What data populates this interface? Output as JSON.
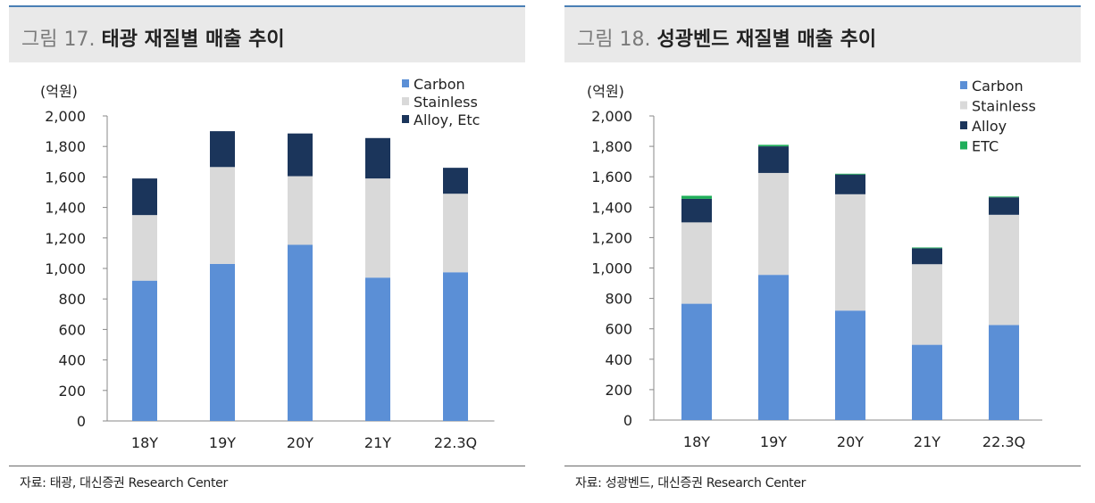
{
  "figures": [
    {
      "number": "그림 17.",
      "title": "태광 재질별 매출 추이",
      "source": "자료: 태광, 대신증권 Research Center",
      "unit": "(억원)"
    },
    {
      "number": "그림 18.",
      "title": "성광벤드 재질별 매출 추이",
      "source": "자료: 성광벤드, 대신증권 Research Center",
      "unit": "(억원)"
    }
  ],
  "chart_data": [
    {
      "type": "bar",
      "stacked": true,
      "title": "태광 재질별 매출 추이",
      "ylabel": "(억원)",
      "ylim": [
        0,
        2000
      ],
      "yticks": [
        "0",
        "200",
        "400",
        "600",
        "800",
        "1,000",
        "1,200",
        "1,400",
        "1,600",
        "1,800",
        "2,000"
      ],
      "categories": [
        "18Y",
        "19Y",
        "20Y",
        "21Y",
        "22.3Q"
      ],
      "legend_position": "top-right",
      "series": [
        {
          "name": "Carbon",
          "color": "#5b8fd6",
          "values": [
            920,
            1030,
            1155,
            940,
            975
          ]
        },
        {
          "name": "Stainless",
          "color": "#d9d9d9",
          "values": [
            430,
            635,
            450,
            650,
            515
          ]
        },
        {
          "name": "Alloy, Etc",
          "color": "#1b355b",
          "values": [
            240,
            235,
            280,
            265,
            170
          ]
        }
      ],
      "grid": false
    },
    {
      "type": "bar",
      "stacked": true,
      "title": "성광벤드 재질별 매출 추이",
      "ylabel": "(억원)",
      "ylim": [
        0,
        2000
      ],
      "yticks": [
        "0",
        "200",
        "400",
        "600",
        "800",
        "1,000",
        "1,200",
        "1,400",
        "1,600",
        "1,800",
        "2,000"
      ],
      "categories": [
        "18Y",
        "19Y",
        "20Y",
        "21Y",
        "22.3Q"
      ],
      "legend_position": "top-right",
      "series": [
        {
          "name": "Carbon",
          "color": "#5b8fd6",
          "values": [
            765,
            955,
            720,
            495,
            625
          ]
        },
        {
          "name": "Stainless",
          "color": "#d9d9d9",
          "values": [
            535,
            670,
            765,
            530,
            725
          ]
        },
        {
          "name": "Alloy",
          "color": "#1b355b",
          "values": [
            155,
            175,
            130,
            105,
            115
          ]
        },
        {
          "name": "ETC",
          "color": "#1fae5a",
          "values": [
            20,
            10,
            5,
            5,
            5
          ]
        }
      ],
      "grid": false
    }
  ]
}
